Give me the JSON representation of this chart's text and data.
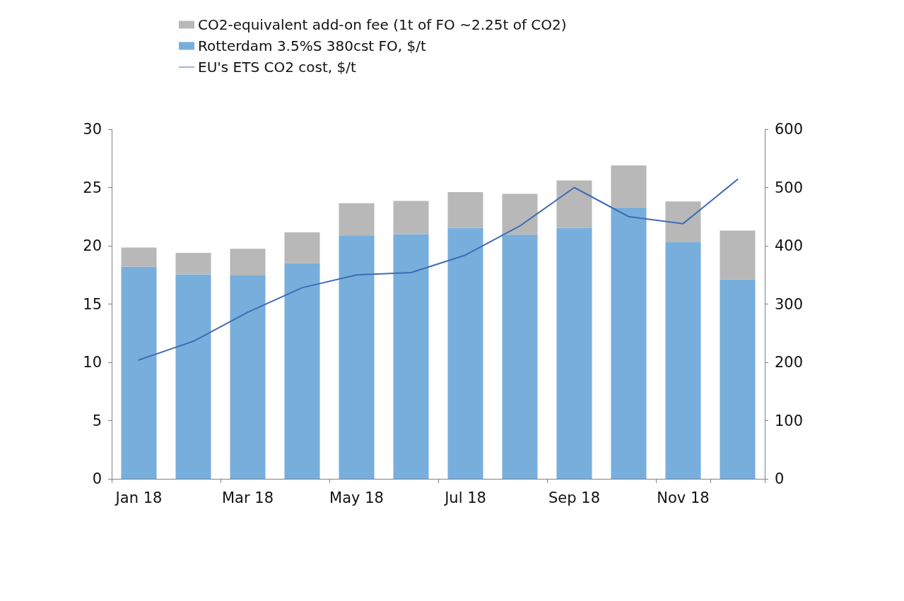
{
  "chart_data": {
    "type": "bar",
    "stacked": true,
    "categories": [
      "Jan 18",
      null,
      "Mar 18",
      null,
      "May 18",
      null,
      "Jul 18",
      null,
      "Sep 18",
      null,
      "Nov 18",
      null
    ],
    "series": [
      {
        "name": "Rotterdam 3.5%S 380cst FO, $/t",
        "color": "#78aedb",
        "axis": "y2",
        "values": [
          364,
          351,
          349,
          370,
          417,
          420,
          431,
          419,
          431,
          466,
          406,
          342
        ]
      },
      {
        "name": "CO2-equivalent add-on fee (1t of FO ~2.25t of CO2)",
        "color": "#b8b8b8",
        "axis": "y2",
        "values": [
          33,
          37,
          46,
          53,
          56,
          57,
          61,
          70,
          81,
          72,
          70,
          84
        ]
      },
      {
        "name": "EU's ETS CO2 cost, $/t",
        "type": "line",
        "color": "#3f6cb5",
        "marker": "none",
        "values": [
          10.2,
          11.8,
          14.3,
          16.4,
          17.5,
          17.7,
          19.2,
          21.7,
          25.0,
          22.5,
          21.9,
          25.7
        ]
      }
    ],
    "ylim": [
      0,
      30
    ],
    "yticks": [
      0,
      5,
      10,
      15,
      20,
      25,
      30
    ],
    "y2lim": [
      0,
      600
    ],
    "y2ticks": [
      0,
      100,
      200,
      300,
      400,
      500,
      600
    ],
    "grid": false,
    "legend": "top"
  }
}
